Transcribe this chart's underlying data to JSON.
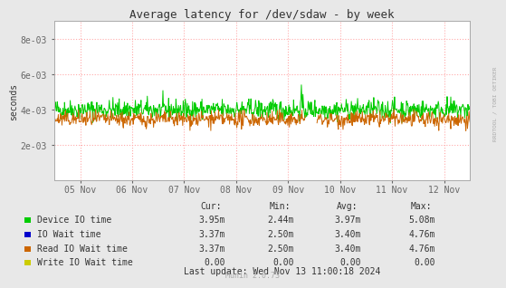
{
  "title": "Average latency for /dev/sdaw - by week",
  "ylabel": "seconds",
  "right_label": "RRDTOOL / TOBI OETIKER",
  "bg_color": "#e8e8e8",
  "plot_bg_color": "#ffffff",
  "grid_color": "#ffaaaa",
  "ylim": [
    0,
    0.009
  ],
  "yticks": [
    0.002,
    0.004,
    0.006,
    0.008
  ],
  "ytick_labels": [
    "2e-03",
    "4e-03",
    "6e-03",
    "8e-03"
  ],
  "xtick_labels": [
    "05 Nov",
    "06 Nov",
    "07 Nov",
    "08 Nov",
    "09 Nov",
    "10 Nov",
    "11 Nov",
    "12 Nov"
  ],
  "green_color": "#00cc00",
  "orange_color": "#cc6600",
  "green_base": 0.004,
  "orange_base": 0.00345,
  "noise_scale_green": 0.00028,
  "noise_scale_orange": 0.00022,
  "legend_entries": [
    {
      "label": "Device IO time",
      "color": "#00cc00"
    },
    {
      "label": "IO Wait time",
      "color": "#0000cc"
    },
    {
      "label": "Read IO Wait time",
      "color": "#cc6600"
    },
    {
      "label": "Write IO Wait time",
      "color": "#cccc00"
    }
  ],
  "table_headers": [
    "Cur:",
    "Min:",
    "Avg:",
    "Max:"
  ],
  "table_rows": [
    [
      "Device IO time",
      "3.95m",
      "2.44m",
      "3.97m",
      "5.08m"
    ],
    [
      "IO Wait time",
      "3.37m",
      "2.50m",
      "3.40m",
      "4.76m"
    ],
    [
      "Read IO Wait time",
      "3.37m",
      "2.50m",
      "3.40m",
      "4.76m"
    ],
    [
      "Write IO Wait time",
      "0.00",
      "0.00",
      "0.00",
      "0.00"
    ]
  ],
  "last_update": "Last update: Wed Nov 13 11:00:18 2024",
  "munin_label": "Munin 2.0.73",
  "seed": 42
}
